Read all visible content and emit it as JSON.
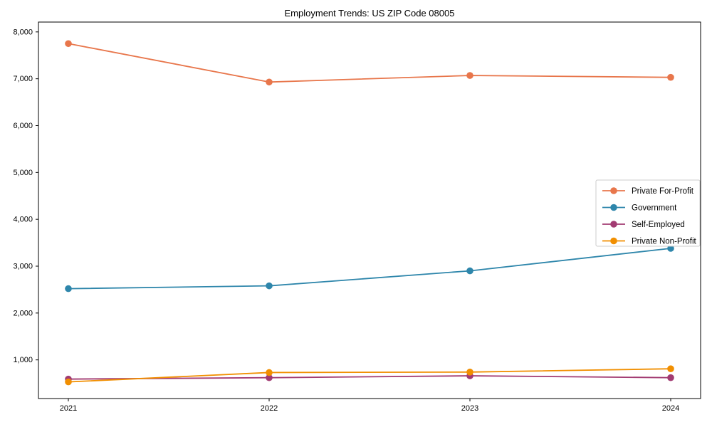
{
  "chart_data": {
    "type": "line",
    "title": "Employment Trends: US ZIP Code 08005",
    "xlabel": "",
    "ylabel": "",
    "x": [
      "2021",
      "2022",
      "2023",
      "2024"
    ],
    "series": [
      {
        "name": "Private For-Profit",
        "color": "#E8764B",
        "values": [
          7750,
          6930,
          7070,
          7030
        ]
      },
      {
        "name": "Government",
        "color": "#2E86AB",
        "values": [
          2520,
          2580,
          2900,
          3380
        ]
      },
      {
        "name": "Self-Employed",
        "color": "#A23B72",
        "values": [
          590,
          620,
          660,
          620
        ]
      },
      {
        "name": "Private Non-Profit",
        "color": "#F18F01",
        "values": [
          530,
          730,
          740,
          810
        ]
      }
    ],
    "yticks": [
      1000,
      2000,
      3000,
      4000,
      5000,
      6000,
      7000,
      8000
    ],
    "ytick_labels": [
      "1,000",
      "2,000",
      "3,000",
      "4,000",
      "5,000",
      "6,000",
      "7,000",
      "8,000"
    ],
    "ylim": [
      175,
      8210
    ],
    "grid": false,
    "marker": "circle",
    "legend_position": "center-right",
    "legend_border_color": "#cccccc",
    "axis_color": "#000000"
  }
}
